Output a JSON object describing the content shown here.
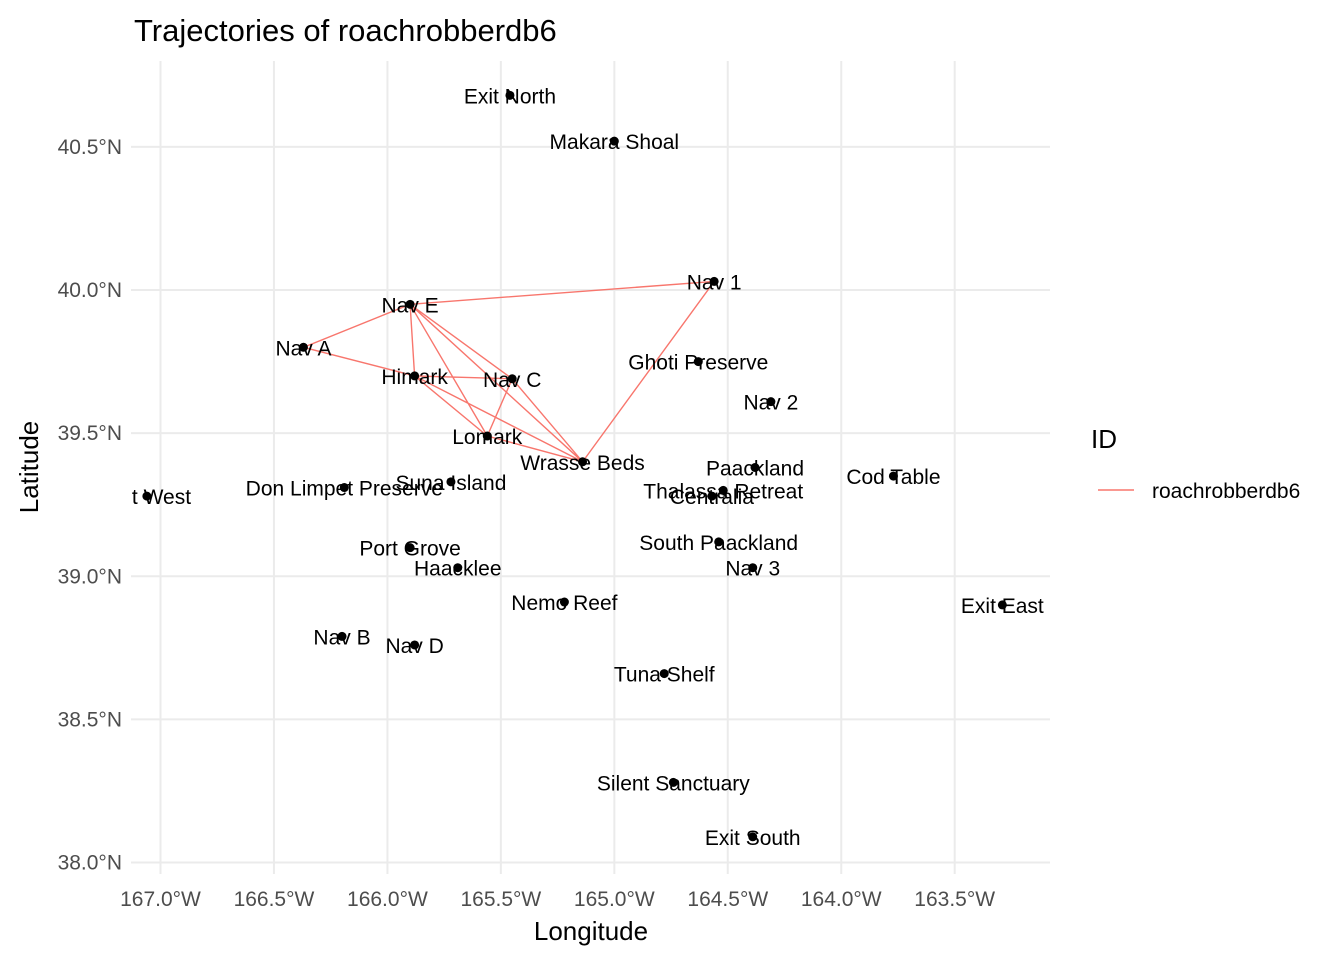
{
  "chart_data": {
    "type": "scatter",
    "title": "Trajectories of roachrobberdb6",
    "xlabel": "Longitude",
    "ylabel": "Latitude",
    "xlim": [
      -167.13,
      -163.08
    ],
    "ylim": [
      37.96,
      40.8
    ],
    "x_ticks": [
      -167.0,
      -166.5,
      -166.0,
      -165.5,
      -165.0,
      -164.5,
      -164.0,
      -163.5
    ],
    "x_tick_labels": [
      "167.0°W",
      "166.5°W",
      "166.0°W",
      "165.5°W",
      "165.0°W",
      "164.5°W",
      "164.0°W",
      "163.5°W"
    ],
    "y_ticks": [
      38.0,
      38.5,
      39.0,
      39.5,
      40.0,
      40.5
    ],
    "y_tick_labels": [
      "38.0°N",
      "38.5°N",
      "39.0°N",
      "39.5°N",
      "40.0°N",
      "40.5°N"
    ],
    "grid": true,
    "legend": {
      "title": "ID",
      "position": "right",
      "entries": [
        {
          "name": "roachrobberdb6",
          "color": "#F8766D"
        }
      ]
    },
    "points": [
      {
        "name": "Exit North",
        "lon": -165.46,
        "lat": 40.68
      },
      {
        "name": "Makara Shoal",
        "lon": -165.0,
        "lat": 40.52
      },
      {
        "name": "Nav 1",
        "lon": -164.56,
        "lat": 40.03
      },
      {
        "name": "Nav E",
        "lon": -165.9,
        "lat": 39.95
      },
      {
        "name": "Nav A",
        "lon": -166.37,
        "lat": 39.8
      },
      {
        "name": "Ghoti Preserve",
        "lon": -164.63,
        "lat": 39.75
      },
      {
        "name": "Himark",
        "lon": -165.88,
        "lat": 39.7
      },
      {
        "name": "Nav C",
        "lon": -165.45,
        "lat": 39.69
      },
      {
        "name": "Nav 2",
        "lon": -164.31,
        "lat": 39.61
      },
      {
        "name": "Lomark",
        "lon": -165.56,
        "lat": 39.49
      },
      {
        "name": "Wrasse Beds",
        "lon": -165.14,
        "lat": 39.4
      },
      {
        "name": "Paackland",
        "lon": -164.38,
        "lat": 39.38
      },
      {
        "name": "Cod Table",
        "lon": -163.77,
        "lat": 39.35
      },
      {
        "name": "Suna Island",
        "lon": -165.72,
        "lat": 39.33
      },
      {
        "name": "Don Limpet Preserve",
        "lon": -166.19,
        "lat": 39.31
      },
      {
        "name": "Thalassa Retreat",
        "lon": -164.52,
        "lat": 39.3
      },
      {
        "name": "Centralia",
        "lon": -164.57,
        "lat": 39.28
      },
      {
        "name": "Exit West",
        "lon": -167.06,
        "lat": 39.28
      },
      {
        "name": "South Paackland",
        "lon": -164.54,
        "lat": 39.12
      },
      {
        "name": "Port Grove",
        "lon": -165.9,
        "lat": 39.1
      },
      {
        "name": "Haacklee",
        "lon": -165.69,
        "lat": 39.03
      },
      {
        "name": "Nav 3",
        "lon": -164.39,
        "lat": 39.03
      },
      {
        "name": "Nemo Reef",
        "lon": -165.22,
        "lat": 38.91
      },
      {
        "name": "Exit East",
        "lon": -163.29,
        "lat": 38.9
      },
      {
        "name": "Nav B",
        "lon": -166.2,
        "lat": 38.79
      },
      {
        "name": "Nav D",
        "lon": -165.88,
        "lat": 38.76
      },
      {
        "name": "Tuna Shelf",
        "lon": -164.78,
        "lat": 38.66
      },
      {
        "name": "Silent Sanctuary",
        "lon": -164.74,
        "lat": 38.28
      },
      {
        "name": "Exit South",
        "lon": -164.39,
        "lat": 38.09
      }
    ],
    "series": [
      {
        "name": "roachrobberdb6",
        "color": "#F8766D",
        "path": [
          [
            -165.88,
            39.7
          ],
          [
            -165.45,
            39.69
          ],
          [
            -165.14,
            39.4
          ],
          [
            -164.56,
            40.03
          ],
          [
            -165.9,
            39.95
          ],
          [
            -166.37,
            39.8
          ],
          [
            -165.88,
            39.7
          ],
          [
            -165.56,
            39.49
          ],
          [
            -165.45,
            39.69
          ],
          [
            -165.9,
            39.95
          ],
          [
            -165.88,
            39.7
          ],
          [
            -165.14,
            39.4
          ],
          [
            -165.9,
            39.95
          ],
          [
            -165.56,
            39.49
          ],
          [
            -165.14,
            39.4
          ]
        ]
      }
    ]
  }
}
